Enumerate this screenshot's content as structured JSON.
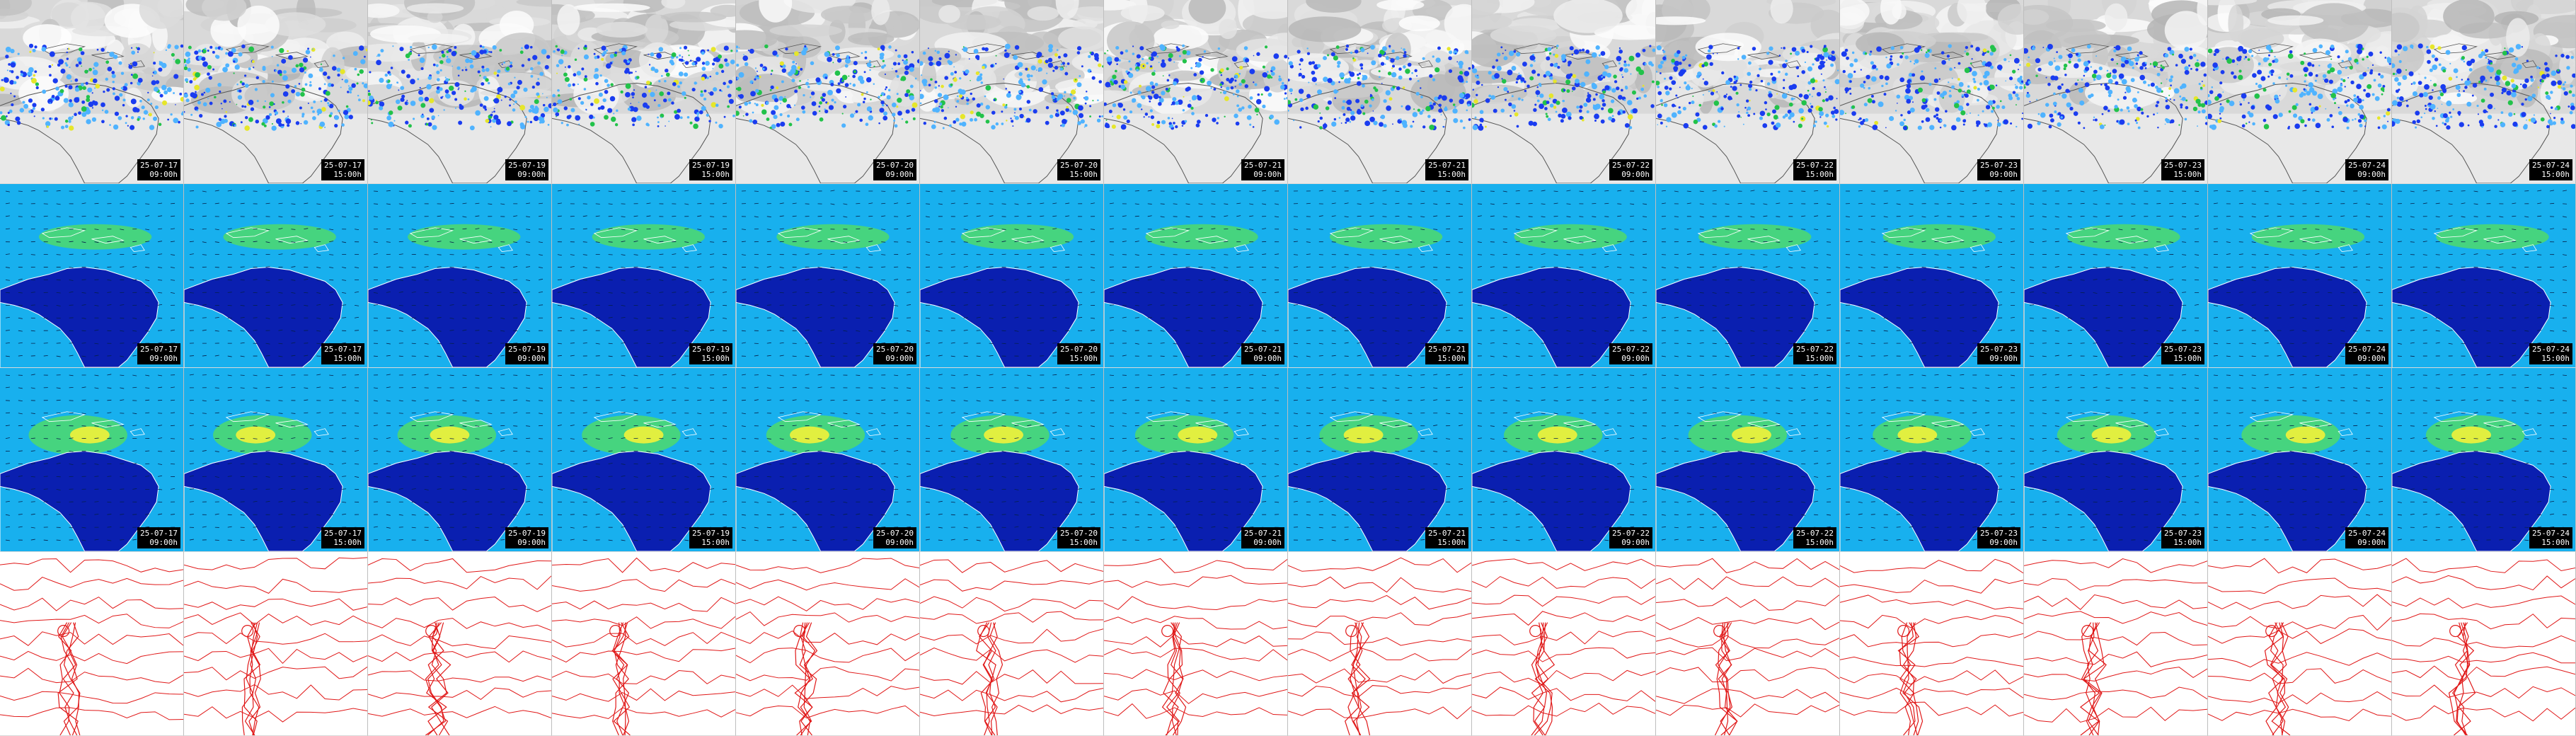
{
  "colors": {
    "cloud_bg": "#d9d9d9",
    "cloud_white": "#ffffff",
    "precip_blue": "#1a3cf0",
    "precip_light": "#4fb3ff",
    "precip_green": "#22c24a",
    "precip_yellow": "#e6e62a",
    "wind_bg": "#18b0ee",
    "land_dark": "#0a1fb0",
    "wind_green": "#55e05a",
    "wind_yellow": "#f2f23a",
    "coast": "#ffffff",
    "contour_red": "#e01818",
    "stamp_bg": "#000000",
    "stamp_text": "#ffffff"
  },
  "rows": [
    {
      "kind": "satellite-precipitation",
      "frames": [
        {
          "date": "25-07-17",
          "time": "09:00h"
        },
        {
          "date": "25-07-17",
          "time": "15:00h"
        },
        {
          "date": "25-07-19",
          "time": "09:00h"
        },
        {
          "date": "25-07-19",
          "time": "15:00h"
        },
        {
          "date": "25-07-20",
          "time": "09:00h"
        },
        {
          "date": "25-07-20",
          "time": "15:00h"
        },
        {
          "date": "25-07-21",
          "time": "09:00h"
        },
        {
          "date": "25-07-21",
          "time": "15:00h"
        },
        {
          "date": "25-07-22",
          "time": "09:00h"
        },
        {
          "date": "25-07-22",
          "time": "15:00h"
        },
        {
          "date": "25-07-23",
          "time": "09:00h"
        },
        {
          "date": "25-07-23",
          "time": "15:00h"
        },
        {
          "date": "25-07-24",
          "time": "09:00h"
        },
        {
          "date": "25-07-24",
          "time": "15:00h"
        }
      ]
    },
    {
      "kind": "wind-low-level",
      "frames": [
        {
          "date": "25-07-17",
          "time": "09:00h"
        },
        {
          "date": "25-07-17",
          "time": "15:00h"
        },
        {
          "date": "25-07-19",
          "time": "09:00h"
        },
        {
          "date": "25-07-19",
          "time": "15:00h"
        },
        {
          "date": "25-07-20",
          "time": "09:00h"
        },
        {
          "date": "25-07-20",
          "time": "15:00h"
        },
        {
          "date": "25-07-21",
          "time": "09:00h"
        },
        {
          "date": "25-07-21",
          "time": "15:00h"
        },
        {
          "date": "25-07-22",
          "time": "09:00h"
        },
        {
          "date": "25-07-22",
          "time": "15:00h"
        },
        {
          "date": "25-07-23",
          "time": "09:00h"
        },
        {
          "date": "25-07-23",
          "time": "15:00h"
        },
        {
          "date": "25-07-24",
          "time": "09:00h"
        },
        {
          "date": "25-07-24",
          "time": "15:00h"
        }
      ]
    },
    {
      "kind": "wind-upper-level",
      "frames": [
        {
          "date": "25-07-17",
          "time": "09:00h"
        },
        {
          "date": "25-07-17",
          "time": "15:00h"
        },
        {
          "date": "25-07-19",
          "time": "09:00h"
        },
        {
          "date": "25-07-19",
          "time": "15:00h"
        },
        {
          "date": "25-07-20",
          "time": "09:00h"
        },
        {
          "date": "25-07-20",
          "time": "15:00h"
        },
        {
          "date": "25-07-21",
          "time": "09:00h"
        },
        {
          "date": "25-07-21",
          "time": "15:00h"
        },
        {
          "date": "25-07-22",
          "time": "09:00h"
        },
        {
          "date": "25-07-22",
          "time": "15:00h"
        },
        {
          "date": "25-07-23",
          "time": "09:00h"
        },
        {
          "date": "25-07-23",
          "time": "15:00h"
        },
        {
          "date": "25-07-24",
          "time": "09:00h"
        },
        {
          "date": "25-07-24",
          "time": "15:00h"
        }
      ]
    },
    {
      "kind": "pressure-contours",
      "frames": [
        {},
        {},
        {},
        {},
        {},
        {},
        {},
        {},
        {},
        {},
        {},
        {},
        {},
        {}
      ]
    }
  ]
}
